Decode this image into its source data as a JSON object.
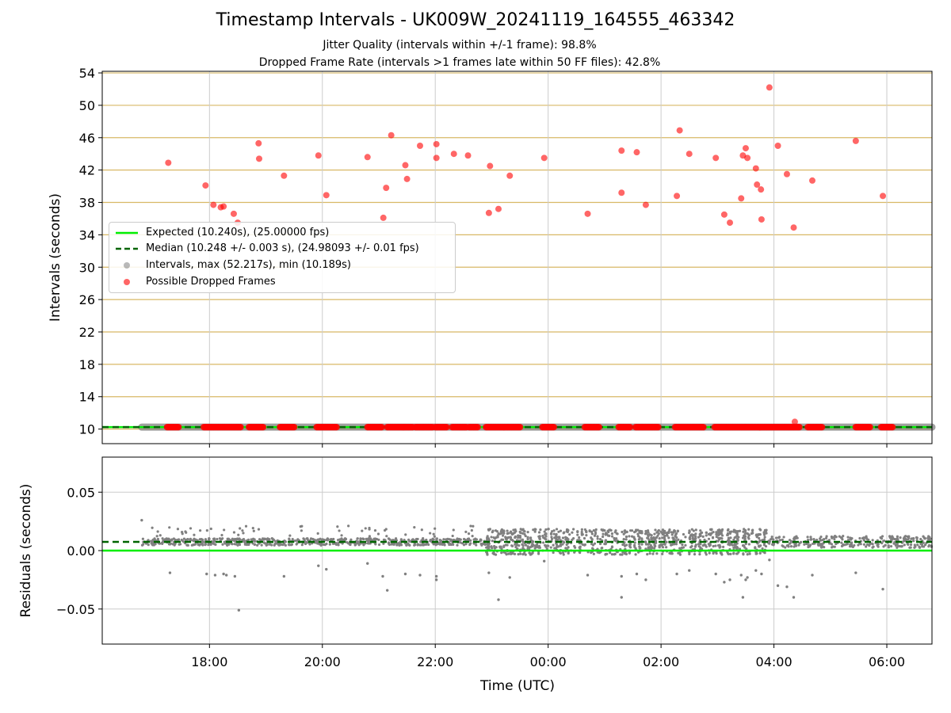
{
  "figure": {
    "title": "Timestamp Intervals - UK009W_20241119_164555_463342",
    "subtitle_jitter": "Jitter Quality (intervals within +/-1 frame): 98.8%",
    "subtitle_dropped": "Dropped Frame Rate (intervals >1 frames late within 50 FF files): 42.8%"
  },
  "legend": {
    "expected": "Expected (10.240s), (25.00000 fps)",
    "median": "Median (10.248 +/- 0.003 s), (24.98093 +/- 0.01 fps)",
    "intervals": "Intervals, max (52.217s), min (10.189s)",
    "dropped": "Possible Dropped Frames"
  },
  "colors": {
    "expected": "#00ee00",
    "median": "#006400",
    "intervals": "#808080",
    "dropped": "#ff0000",
    "hgrid": "#d8b866",
    "vgrid": "#cccccc"
  },
  "chart_data": [
    {
      "type": "scatter",
      "ylabel": "Intervals (seconds)",
      "x_unit": "hours since 00:00 UTC (negative = previous day)",
      "xlim": [
        -7.9,
        6.8
      ],
      "ylim": [
        8.2,
        54.2
      ],
      "yticks": [
        10,
        14,
        18,
        22,
        26,
        30,
        34,
        38,
        42,
        46,
        50,
        54
      ],
      "xticks": [
        -6,
        -4,
        -2,
        0,
        2,
        4,
        6
      ],
      "xtick_labels": [
        "18:00",
        "20:00",
        "22:00",
        "00:00",
        "02:00",
        "04:00",
        "06:00"
      ],
      "grid": true,
      "legend_position": "center-left",
      "expected_interval": 10.24,
      "median_interval": 10.248,
      "intervals_range": [
        -7.2,
        6.8
      ],
      "intervals_value": 10.24,
      "dropped_frames": [
        {
          "x": -6.73,
          "y": 42.9
        },
        {
          "x": -6.07,
          "y": 40.1
        },
        {
          "x": -5.93,
          "y": 37.7
        },
        {
          "x": -5.8,
          "y": 37.4
        },
        {
          "x": -5.75,
          "y": 37.5
        },
        {
          "x": -5.57,
          "y": 36.6
        },
        {
          "x": -5.5,
          "y": 35.5
        },
        {
          "x": -5.13,
          "y": 45.3
        },
        {
          "x": -5.12,
          "y": 43.4
        },
        {
          "x": -4.68,
          "y": 41.3
        },
        {
          "x": -4.07,
          "y": 43.8
        },
        {
          "x": -3.93,
          "y": 38.9
        },
        {
          "x": -3.2,
          "y": 43.6
        },
        {
          "x": -2.92,
          "y": 36.1
        },
        {
          "x": -2.87,
          "y": 39.8
        },
        {
          "x": -2.78,
          "y": 46.3
        },
        {
          "x": -2.53,
          "y": 42.6
        },
        {
          "x": -2.5,
          "y": 40.9
        },
        {
          "x": -2.27,
          "y": 45.0
        },
        {
          "x": -1.98,
          "y": 45.2
        },
        {
          "x": -1.98,
          "y": 43.5
        },
        {
          "x": -1.67,
          "y": 44.0
        },
        {
          "x": -1.42,
          "y": 43.8
        },
        {
          "x": -1.03,
          "y": 42.5
        },
        {
          "x": -1.05,
          "y": 36.7
        },
        {
          "x": -0.88,
          "y": 37.2
        },
        {
          "x": -0.68,
          "y": 41.3
        },
        {
          "x": -0.07,
          "y": 43.5
        },
        {
          "x": 0.7,
          "y": 36.6
        },
        {
          "x": 1.3,
          "y": 44.4
        },
        {
          "x": 1.3,
          "y": 39.2
        },
        {
          "x": 1.57,
          "y": 44.2
        },
        {
          "x": 1.73,
          "y": 37.7
        },
        {
          "x": 2.28,
          "y": 38.8
        },
        {
          "x": 2.33,
          "y": 46.9
        },
        {
          "x": 2.5,
          "y": 44.0
        },
        {
          "x": 2.97,
          "y": 43.5
        },
        {
          "x": 3.12,
          "y": 36.5
        },
        {
          "x": 3.22,
          "y": 35.5
        },
        {
          "x": 3.42,
          "y": 38.5
        },
        {
          "x": 3.45,
          "y": 43.8
        },
        {
          "x": 3.5,
          "y": 44.7
        },
        {
          "x": 3.53,
          "y": 43.5
        },
        {
          "x": 3.68,
          "y": 42.2
        },
        {
          "x": 3.7,
          "y": 40.2
        },
        {
          "x": 3.77,
          "y": 39.6
        },
        {
          "x": 3.78,
          "y": 35.9
        },
        {
          "x": 3.92,
          "y": 52.2
        },
        {
          "x": 4.07,
          "y": 45.0
        },
        {
          "x": 4.23,
          "y": 41.5
        },
        {
          "x": 4.35,
          "y": 34.9
        },
        {
          "x": 4.37,
          "y": 10.9
        },
        {
          "x": 4.68,
          "y": 40.7
        },
        {
          "x": 5.45,
          "y": 45.6
        },
        {
          "x": 5.93,
          "y": 38.8
        }
      ],
      "dropped_near_expected_ranges": [
        [
          -6.75,
          -6.55
        ],
        [
          -6.1,
          -5.45
        ],
        [
          -5.3,
          -5.05
        ],
        [
          -4.75,
          -4.5
        ],
        [
          -4.1,
          -3.75
        ],
        [
          -3.2,
          -2.95
        ],
        [
          -2.85,
          -2.4
        ],
        [
          -2.35,
          -2.05
        ],
        [
          -2.0,
          -1.8
        ],
        [
          -1.7,
          -1.45
        ],
        [
          -1.4,
          -1.25
        ],
        [
          -1.1,
          -0.5
        ],
        [
          -0.1,
          0.1
        ],
        [
          0.65,
          0.9
        ],
        [
          1.25,
          1.45
        ],
        [
          1.55,
          1.95
        ],
        [
          2.25,
          2.75
        ],
        [
          2.95,
          3.75
        ],
        [
          3.75,
          4.45
        ],
        [
          4.6,
          4.85
        ],
        [
          5.45,
          5.7
        ],
        [
          5.9,
          6.1
        ]
      ]
    },
    {
      "type": "scatter",
      "xlabel": "Time (UTC)",
      "ylabel": "Residuals (seconds)",
      "xlim": [
        -7.9,
        6.8
      ],
      "ylim": [
        -0.08,
        0.08
      ],
      "yticks": [
        -0.05,
        0.0,
        0.05
      ],
      "ytick_labels": [
        "−0.05",
        "0.00",
        "0.05"
      ],
      "xticks": [
        -6,
        -4,
        -2,
        0,
        2,
        4,
        6
      ],
      "xtick_labels": [
        "18:00",
        "20:00",
        "22:00",
        "00:00",
        "02:00",
        "04:00",
        "06:00"
      ],
      "grid": true,
      "expected_residual": 0.0,
      "median_residual": 0.0075,
      "outliers": [
        {
          "x": -7.2,
          "y": 0.026
        },
        {
          "x": -6.7,
          "y": -0.019
        },
        {
          "x": -6.05,
          "y": -0.02
        },
        {
          "x": -5.9,
          "y": -0.021
        },
        {
          "x": -5.75,
          "y": -0.02
        },
        {
          "x": -5.7,
          "y": -0.021
        },
        {
          "x": -5.55,
          "y": -0.022
        },
        {
          "x": -5.48,
          "y": -0.051
        },
        {
          "x": -4.68,
          "y": -0.022
        },
        {
          "x": -4.07,
          "y": -0.013
        },
        {
          "x": -3.93,
          "y": -0.016
        },
        {
          "x": -3.2,
          "y": -0.011
        },
        {
          "x": -2.93,
          "y": -0.022
        },
        {
          "x": -2.85,
          "y": -0.034
        },
        {
          "x": -2.53,
          "y": -0.02
        },
        {
          "x": -2.27,
          "y": -0.021
        },
        {
          "x": -1.98,
          "y": -0.022
        },
        {
          "x": -1.98,
          "y": -0.025
        },
        {
          "x": -1.05,
          "y": -0.019
        },
        {
          "x": -0.88,
          "y": -0.042
        },
        {
          "x": -0.68,
          "y": -0.023
        },
        {
          "x": -0.07,
          "y": -0.009
        },
        {
          "x": 0.7,
          "y": -0.021
        },
        {
          "x": 1.3,
          "y": -0.022
        },
        {
          "x": 1.3,
          "y": -0.04
        },
        {
          "x": 1.57,
          "y": -0.02
        },
        {
          "x": 1.73,
          "y": -0.025
        },
        {
          "x": 2.28,
          "y": -0.02
        },
        {
          "x": 2.5,
          "y": -0.017
        },
        {
          "x": 2.97,
          "y": -0.02
        },
        {
          "x": 3.12,
          "y": -0.027
        },
        {
          "x": 3.22,
          "y": -0.025
        },
        {
          "x": 3.42,
          "y": -0.021
        },
        {
          "x": 3.45,
          "y": -0.04
        },
        {
          "x": 3.5,
          "y": -0.025
        },
        {
          "x": 3.53,
          "y": -0.023
        },
        {
          "x": 3.68,
          "y": -0.017
        },
        {
          "x": 3.78,
          "y": -0.02
        },
        {
          "x": 3.92,
          "y": -0.008
        },
        {
          "x": 4.07,
          "y": -0.03
        },
        {
          "x": 4.23,
          "y": -0.031
        },
        {
          "x": 4.35,
          "y": -0.04
        },
        {
          "x": 4.68,
          "y": -0.021
        },
        {
          "x": 5.45,
          "y": -0.019
        },
        {
          "x": 5.93,
          "y": -0.033
        }
      ]
    }
  ]
}
